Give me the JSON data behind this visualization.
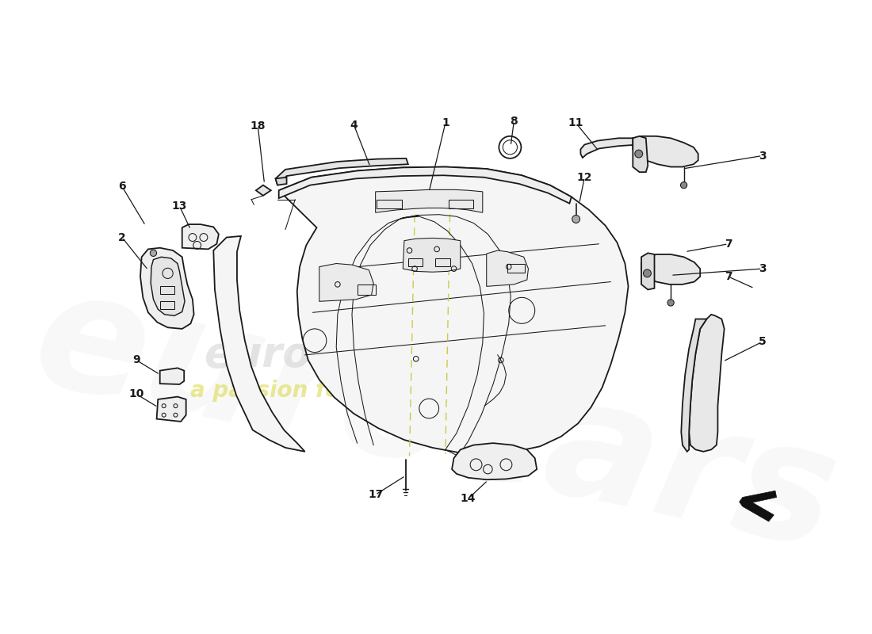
{
  "bg_color": "#ffffff",
  "line_color": "#1a1a1a",
  "lw_main": 1.3,
  "lw_thin": 0.75,
  "lw_thick": 2.0,
  "labels": [
    [
      "1",
      555,
      125,
      530,
      230
    ],
    [
      "4",
      415,
      128,
      440,
      192
    ],
    [
      "8",
      660,
      122,
      655,
      160
    ],
    [
      "11",
      755,
      125,
      790,
      168
    ],
    [
      "18",
      268,
      130,
      278,
      218
    ],
    [
      "12",
      768,
      208,
      760,
      248
    ],
    [
      "2",
      60,
      300,
      100,
      350
    ],
    [
      "6",
      60,
      222,
      96,
      282
    ],
    [
      "13",
      148,
      252,
      165,
      288
    ],
    [
      "9",
      82,
      488,
      118,
      510
    ],
    [
      "10",
      82,
      540,
      115,
      560
    ],
    [
      "3",
      1040,
      175,
      918,
      195
    ],
    [
      "3",
      1040,
      348,
      900,
      358
    ],
    [
      "7",
      988,
      310,
      922,
      322
    ],
    [
      "7",
      988,
      360,
      1028,
      378
    ],
    [
      "5",
      1040,
      460,
      980,
      490
    ],
    [
      "17",
      448,
      694,
      494,
      665
    ],
    [
      "14",
      590,
      700,
      620,
      672
    ]
  ]
}
